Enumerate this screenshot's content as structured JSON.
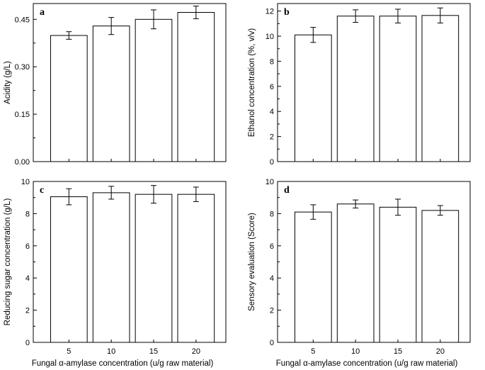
{
  "chart_data": [
    {
      "panel": "a",
      "type": "bar",
      "categories": [
        "5",
        "10",
        "15",
        "20"
      ],
      "values": [
        0.399,
        0.429,
        0.45,
        0.472
      ],
      "errors": [
        0.012,
        0.027,
        0.03,
        0.02
      ],
      "ylabel": "Acidity (g/L)",
      "xlabel": "",
      "ylim": [
        0,
        0.5
      ],
      "yticks": [
        "0.00",
        "0.15",
        "0.30",
        "0.45"
      ],
      "ytick_values": [
        0,
        0.15,
        0.3,
        0.45
      ],
      "show_xticklabels": false,
      "grid": false
    },
    {
      "panel": "b",
      "type": "bar",
      "categories": [
        "5",
        "10",
        "15",
        "20"
      ],
      "values": [
        10.1,
        11.6,
        11.6,
        11.65
      ],
      "errors": [
        0.6,
        0.5,
        0.55,
        0.6
      ],
      "ylabel": "Ethanol concentration (%, v/v)",
      "xlabel": "",
      "ylim": [
        0,
        12.6
      ],
      "yticks": [
        "0",
        "2",
        "4",
        "6",
        "8",
        "10",
        "12"
      ],
      "ytick_values": [
        0,
        2,
        4,
        6,
        8,
        10,
        12
      ],
      "show_xticklabels": false,
      "grid": false
    },
    {
      "panel": "c",
      "type": "bar",
      "categories": [
        "5",
        "10",
        "15",
        "20"
      ],
      "values": [
        9.05,
        9.3,
        9.2,
        9.2
      ],
      "errors": [
        0.5,
        0.4,
        0.55,
        0.45
      ],
      "ylabel": "Reducing sugar concentration (g/L)",
      "xlabel": "Fungal α-amylase concentration (u/g raw material)",
      "ylim": [
        0,
        10
      ],
      "yticks": [
        "0",
        "2",
        "4",
        "6",
        "8",
        "10"
      ],
      "ytick_values": [
        0,
        2,
        4,
        6,
        8,
        10
      ],
      "show_xticklabels": true,
      "grid": false
    },
    {
      "panel": "d",
      "type": "bar",
      "categories": [
        "5",
        "10",
        "15",
        "20"
      ],
      "values": [
        8.1,
        8.6,
        8.4,
        8.2
      ],
      "errors": [
        0.45,
        0.25,
        0.5,
        0.3
      ],
      "ylabel": "Sensory evaluation (Score)",
      "xlabel": "Fungal α-amylase concentration (u/g raw material)",
      "ylim": [
        0,
        10
      ],
      "yticks": [
        "0",
        "2",
        "4",
        "6",
        "8",
        "10"
      ],
      "ytick_values": [
        0,
        2,
        4,
        6,
        8,
        10
      ],
      "show_xticklabels": true,
      "grid": false
    }
  ]
}
